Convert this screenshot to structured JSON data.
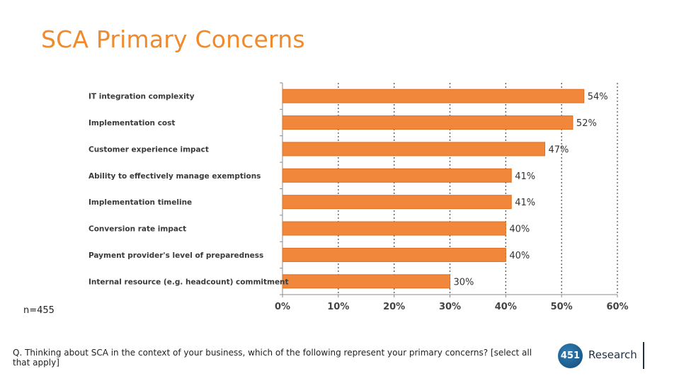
{
  "title": "SCA Primary Concerns",
  "sample_note": "n=455",
  "question_text": "Q. Thinking about SCA in the context of your business, which of the following represent your primary concerns? [select all that apply]",
  "logo": {
    "number": "451",
    "word": "Research"
  },
  "colors": {
    "title": "#f08a2c",
    "bar": "#f0873a",
    "bar_stroke": "#e06f1f",
    "logo_blue": "#1b5a8c"
  },
  "chart_data": {
    "type": "bar",
    "orientation": "horizontal",
    "title": "SCA Primary Concerns",
    "categories": [
      "IT integration complexity",
      "Implementation cost",
      "Customer experience impact",
      "Ability to effectively manage exemptions",
      "Implementation timeline",
      "Conversion rate impact",
      "Payment provider's level of preparedness",
      "Internal resource (e.g. headcount) commitment"
    ],
    "values": [
      54,
      52,
      47,
      41,
      41,
      40,
      40,
      30
    ],
    "data_labels": [
      "54%",
      "52%",
      "47%",
      "41%",
      "41%",
      "40%",
      "40%",
      "30%"
    ],
    "xlim": [
      0,
      60
    ],
    "xticks": [
      0,
      10,
      20,
      30,
      40,
      50,
      60
    ],
    "xtick_labels": [
      "0%",
      "10%",
      "20%",
      "30%",
      "40%",
      "50%",
      "60%"
    ],
    "grid": "vertical dotted",
    "legend": "none"
  }
}
